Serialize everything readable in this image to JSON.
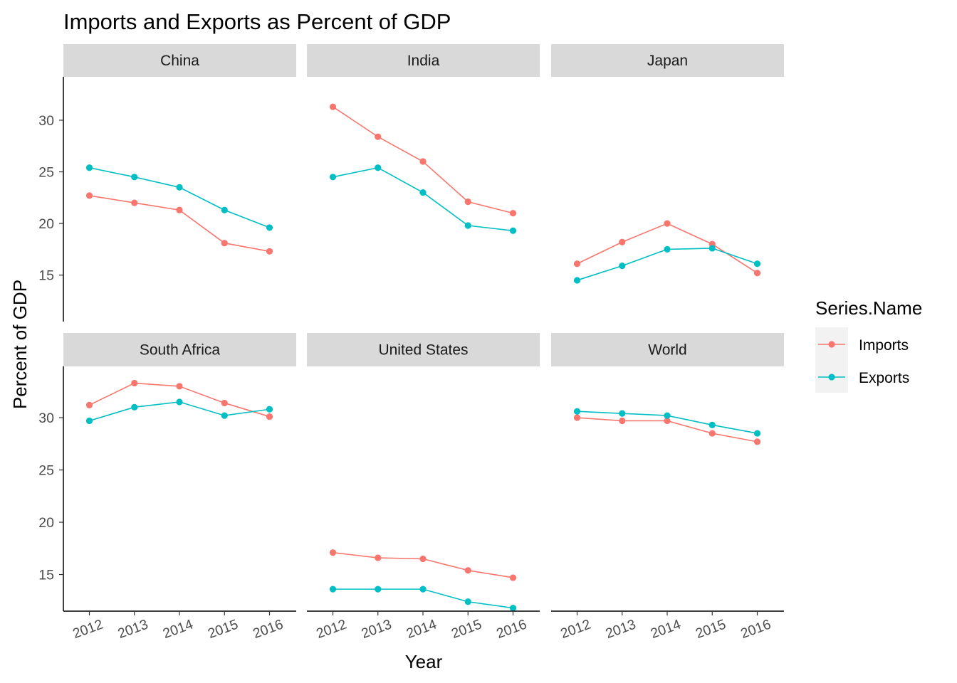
{
  "chart_data": {
    "type": "line",
    "title": "Imports and Exports as Percent of GDP",
    "xlabel": "Year",
    "ylabel": "Percent of GDP",
    "x": [
      "2012",
      "2013",
      "2014",
      "2015",
      "2016"
    ],
    "x_tick_labels": [
      "2012",
      "2013",
      "2014",
      "2015",
      "2016"
    ],
    "facet_rows": [
      {
        "ylim": [
          10.5,
          34.2
        ],
        "yticks": [
          15,
          20,
          25,
          30
        ]
      },
      {
        "ylim": [
          11.5,
          34.9
        ],
        "yticks": [
          15,
          20,
          25,
          30
        ]
      }
    ],
    "grid": false,
    "legend": {
      "title": "Series.Name",
      "position": "right",
      "entries": [
        {
          "name": "Imports",
          "color": "#F8766D"
        },
        {
          "name": "Exports",
          "color": "#00BFC4"
        }
      ]
    },
    "facets": [
      {
        "label": "China",
        "series": [
          {
            "name": "Imports",
            "values": [
              22.7,
              22.0,
              21.3,
              18.1,
              17.3
            ]
          },
          {
            "name": "Exports",
            "values": [
              25.4,
              24.5,
              23.5,
              21.3,
              19.6
            ]
          }
        ]
      },
      {
        "label": "India",
        "series": [
          {
            "name": "Imports",
            "values": [
              31.3,
              28.4,
              26.0,
              22.1,
              21.0
            ]
          },
          {
            "name": "Exports",
            "values": [
              24.5,
              25.4,
              23.0,
              19.8,
              19.3
            ]
          }
        ]
      },
      {
        "label": "Japan",
        "series": [
          {
            "name": "Imports",
            "values": [
              16.1,
              18.2,
              20.0,
              18.0,
              15.2
            ]
          },
          {
            "name": "Exports",
            "values": [
              14.5,
              15.9,
              17.5,
              17.6,
              16.1
            ]
          }
        ]
      },
      {
        "label": "South Africa",
        "series": [
          {
            "name": "Imports",
            "values": [
              31.2,
              33.3,
              33.0,
              31.4,
              30.1
            ]
          },
          {
            "name": "Exports",
            "values": [
              29.7,
              31.0,
              31.5,
              30.2,
              30.8
            ]
          }
        ]
      },
      {
        "label": "United States",
        "series": [
          {
            "name": "Imports",
            "values": [
              17.1,
              16.6,
              16.5,
              15.4,
              14.7
            ]
          },
          {
            "name": "Exports",
            "values": [
              13.6,
              13.6,
              13.6,
              12.4,
              11.8
            ]
          }
        ]
      },
      {
        "label": "World",
        "series": [
          {
            "name": "Imports",
            "values": [
              30.0,
              29.7,
              29.7,
              28.5,
              27.7
            ]
          },
          {
            "name": "Exports",
            "values": [
              30.6,
              30.4,
              30.2,
              29.3,
              28.5
            ]
          }
        ]
      }
    ]
  }
}
